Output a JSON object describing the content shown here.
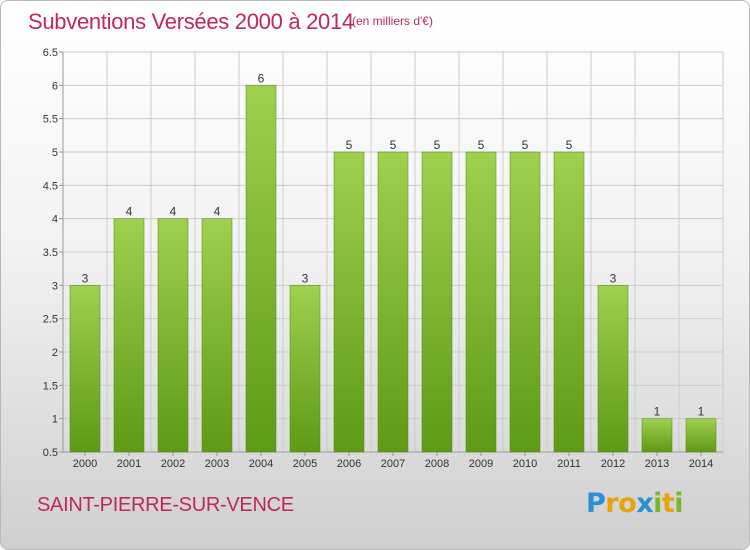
{
  "header": {
    "title": "Subventions Versées 2000 à 2014",
    "units": "(en milliers d'€)"
  },
  "footer": {
    "commune": "SAINT-PIERRE-SUR-VENCE",
    "logo": "Proxiti",
    "logo_letters": [
      {
        "char": "P",
        "color": "#2a8fd4"
      },
      {
        "char": "r",
        "color": "#e8a20c"
      },
      {
        "char": "o",
        "color": "#e8a20c"
      },
      {
        "char": "x",
        "color": "#2a8fd4"
      },
      {
        "char": "i",
        "color": "#7ab829"
      },
      {
        "char": "t",
        "color": "#e8a20c"
      },
      {
        "char": "i",
        "color": "#7ab829"
      }
    ]
  },
  "chart_data": {
    "type": "bar",
    "title": "Subventions Versées 2000 à 2014",
    "subtitle": "(en milliers d'€)",
    "categories": [
      "2000",
      "2001",
      "2002",
      "2003",
      "2004",
      "2005",
      "2006",
      "2007",
      "2008",
      "2009",
      "2010",
      "2011",
      "2012",
      "2013",
      "2014"
    ],
    "values": [
      3,
      4,
      4,
      4,
      6,
      3,
      5,
      5,
      5,
      5,
      5,
      5,
      3,
      1,
      1
    ],
    "ylim": [
      0.5,
      6.5
    ],
    "yticks": [
      0.5,
      1,
      1.5,
      2,
      2.5,
      3,
      3.5,
      4,
      4.5,
      5,
      5.5,
      6,
      6.5
    ],
    "ytick_labels": [
      "0.5",
      "1",
      "1.5",
      "2",
      "2.5",
      "3",
      "3.5",
      "4",
      "4.5",
      "5",
      "5.5",
      "6",
      "6.5"
    ],
    "grid": true,
    "bar_color_top": "#9fd04f",
    "bar_color_bottom": "#5d9a16",
    "grid_color": "#cccccc"
  }
}
